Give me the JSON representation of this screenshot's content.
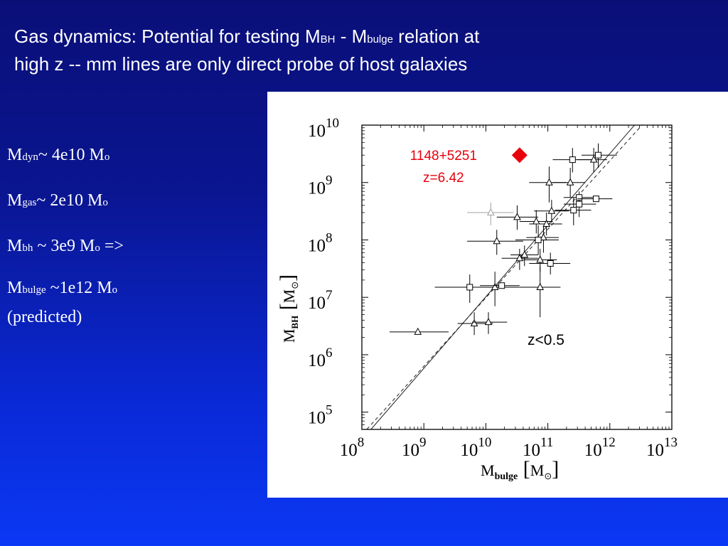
{
  "slide": {
    "title": {
      "line1_pre": "Gas dynamics: Potential for testing M",
      "line1_sub1": "BH",
      "line1_mid": " - M",
      "line1_sub2": "bulge",
      "line1_post": " relation at",
      "line2": "high z -- mm lines are only direct probe of host galaxies"
    },
    "bullets": [
      {
        "base": "M",
        "sub": "dyn",
        "value": "~ 4e10 M",
        "unit_sub": "o",
        "suffix": ""
      },
      {
        "base": "M",
        "sub": "gas",
        "value": "~ 2e10 M",
        "unit_sub": "o",
        "suffix": ""
      },
      {
        "base": "M",
        "sub": "bh",
        "value": " ~ 3e9 M",
        "unit_sub": "o",
        "suffix": " =>"
      },
      {
        "base": "M",
        "sub": "bulge",
        "value": " ~1e12 M",
        "unit_sub": "o",
        "suffix": ""
      }
    ],
    "bullet_note": "(predicted)"
  },
  "colors": {
    "background_top": "#0a0f78",
    "background_bottom": "#0b38f4",
    "highlight": "#e8000b",
    "grey_point": "#a0a0a0"
  },
  "chart_data": {
    "type": "scatter",
    "x_scale": "log",
    "y_scale": "log",
    "xlim": [
      100000000.0,
      10000000000000.0
    ],
    "ylim": [
      50000.0,
      10000000000.0
    ],
    "x_ticks": [
      100000000.0,
      1000000000.0,
      10000000000.0,
      100000000000.0,
      1000000000000.0,
      10000000000000.0
    ],
    "x_tick_labels": [
      [
        "10",
        "8"
      ],
      [
        "10",
        "9"
      ],
      [
        "10",
        "10"
      ],
      [
        "10",
        "11"
      ],
      [
        "10",
        "12"
      ],
      [
        "10",
        "13"
      ]
    ],
    "y_ticks": [
      100000.0,
      1000000.0,
      10000000.0,
      100000000.0,
      1000000000.0,
      10000000000.0
    ],
    "y_tick_labels": [
      [
        "10",
        "5"
      ],
      [
        "10",
        "6"
      ],
      [
        "10",
        "7"
      ],
      [
        "10",
        "8"
      ],
      [
        "10",
        "9"
      ],
      [
        "10",
        "10"
      ]
    ],
    "xlabel": {
      "base": "M",
      "sub": "bulge",
      "unit": "M",
      "unit_sub": "⊙"
    },
    "ylabel": {
      "base": "M",
      "sub": "BH",
      "unit": "M",
      "unit_sub": "⊙"
    },
    "lines": [
      {
        "style": "solid",
        "points": [
          [
            140000000.0,
            50000.0
          ],
          [
            2500000000000.0,
            10000000000.0
          ]
        ]
      },
      {
        "style": "dashed",
        "points": [
          [
            120000000.0,
            50000.0
          ],
          [
            3300000000000.0,
            10000000000.0
          ]
        ]
      }
    ],
    "series": [
      {
        "marker": "triangle",
        "points": [
          {
            "x": 800000000.0,
            "y": 2500000.0,
            "xerr": [
              280000000.0,
              2500000000.0
            ],
            "yerr": null
          },
          {
            "x": 6500000000.0,
            "y": 3500000.0,
            "xerr": [
              3500000000.0,
              13000000000.0
            ],
            "yerr": [
              2200000.0,
              5500000.0
            ]
          },
          {
            "x": 11000000000.0,
            "y": 3700000.0,
            "xerr": [
              6000000000.0,
              22000000000.0
            ],
            "yerr": [
              2300000.0,
              5500000.0
            ]
          },
          {
            "x": 14000000000.0,
            "y": 15000000.0,
            "xerr": [
              6000000000.0,
              35000000000.0
            ],
            "yerr": [
              7000000.0,
              28000000.0
            ]
          },
          {
            "x": 15000000000.0,
            "y": 95000000.0,
            "xerr": [
              5000000000.0,
              40000000000.0
            ],
            "yerr": [
              55000000.0,
              150000000.0
            ]
          },
          {
            "x": 32000000000.0,
            "y": 250000000.0,
            "xerr": [
              15000000000.0,
              70000000000.0
            ],
            "yerr": [
              150000000.0,
              400000000.0
            ]
          },
          {
            "x": 35000000000.0,
            "y": 48000000.0,
            "xerr": [
              18000000000.0,
              70000000000.0
            ],
            "yerr": [
              30000000.0,
              70000000.0
            ]
          },
          {
            "x": 42000000000.0,
            "y": 55000000.0,
            "xerr": [
              25000000000.0,
              70000000000.0
            ],
            "yerr": [
              35000000.0,
              80000000.0
            ]
          },
          {
            "x": 65000000000.0,
            "y": 210000000.0,
            "xerr": [
              35000000000.0,
              120000000000.0
            ],
            "yerr": [
              130000000.0,
              330000000.0
            ]
          },
          {
            "x": 75000000000.0,
            "y": 45000000.0,
            "xerr": [
              40000000000.0,
              140000000000.0
            ],
            "yerr": [
              28000000.0,
              70000000.0
            ]
          },
          {
            "x": 75000000000.0,
            "y": 15000000.0,
            "xerr": [
              35000000000.0,
              160000000000.0
            ],
            "yerr": [
              4500000.0,
              35000000.0
            ]
          },
          {
            "x": 85000000000.0,
            "y": 110000000.0,
            "xerr": [
              45000000000.0,
              150000000000.0
            ],
            "yerr": [
              60000000.0,
              170000000.0
            ]
          },
          {
            "x": 95000000000.0,
            "y": 190000000.0,
            "xerr": [
              50000000000.0,
              170000000000.0
            ],
            "yerr": [
              120000000.0,
              300000000.0
            ]
          },
          {
            "x": 105000000000.0,
            "y": 1000000000.0,
            "xerr": [
              50000000000.0,
              200000000000.0
            ],
            "yerr": [
              450000000.0,
              1900000000.0
            ]
          },
          {
            "x": 115000000000.0,
            "y": 320000000.0,
            "xerr": [
              60000000000.0,
              220000000000.0
            ],
            "yerr": [
              200000000.0,
              500000000.0
            ]
          },
          {
            "x": 230000000000.0,
            "y": 1000000000.0,
            "xerr": [
              120000000000.0,
              400000000000.0
            ],
            "yerr": [
              550000000.0,
              1800000000.0
            ]
          },
          {
            "x": 550000000000.0,
            "y": 2500000000.0,
            "xerr": [
              300000000000.0,
              900000000000.0
            ],
            "yerr": [
              1500000000.0,
              4000000000.0
            ]
          }
        ]
      },
      {
        "marker": "square",
        "points": [
          {
            "x": 5500000000.0,
            "y": 15000000.0,
            "xerr": [
              1500000000.0,
              12000000000.0
            ],
            "yerr": [
              8000000.0,
              25000000.0
            ]
          },
          {
            "x": 18000000000.0,
            "y": 16000000.0,
            "xerr": [
              8000000000.0,
              35000000000.0
            ],
            "yerr": null
          },
          {
            "x": 70000000000.0,
            "y": 100000000.0,
            "xerr": [
              30000000000.0,
              150000000000.0
            ],
            "yerr": [
              55000000.0,
              180000000.0
            ]
          },
          {
            "x": 110000000000.0,
            "y": 39000000.0,
            "xerr": [
              50000000000.0,
              230000000000.0
            ],
            "yerr": [
              25000000.0,
              60000000.0
            ]
          },
          {
            "x": 260000000000.0,
            "y": 330000000.0,
            "xerr": [
              130000000000.0,
              500000000000.0
            ],
            "yerr": [
              180000000.0,
              550000000.0
            ]
          },
          {
            "x": 320000000000.0,
            "y": 420000000.0,
            "xerr": [
              180000000000.0,
              600000000000.0
            ],
            "yerr": [
              250000000.0,
              700000000.0
            ]
          },
          {
            "x": 320000000000.0,
            "y": 550000000.0,
            "xerr": [
              180000000000.0,
              600000000000.0
            ],
            "yerr": null
          },
          {
            "x": 600000000000.0,
            "y": 520000000.0,
            "xerr": [
              300000000000.0,
              1100000000000.0
            ],
            "yerr": null
          },
          {
            "x": 250000000000.0,
            "y": 2500000000.0,
            "xerr": [
              120000000000.0,
              500000000000.0
            ],
            "yerr": [
              1500000000.0,
              4000000000.0
            ]
          },
          {
            "x": 650000000000.0,
            "y": 3000000000.0,
            "xerr": [
              350000000000.0,
              1300000000000.0
            ],
            "yerr": [
              1800000000.0,
              4800000000.0
            ]
          }
        ]
      },
      {
        "marker": "triangle",
        "color": "grey",
        "points": [
          {
            "x": 12000000000.0,
            "y": 300000000.0,
            "xerr": [
              5000000000.0,
              28000000000.0
            ],
            "yerr": [
              180000000.0,
              450000000.0
            ]
          }
        ]
      }
    ],
    "highlight_point": {
      "x": 35000000000.0,
      "y": 3000000000.0,
      "marker": "diamond",
      "label_line1": "1148+5251",
      "label_line2": "z=6.42"
    },
    "annotation": "z<0.5"
  }
}
